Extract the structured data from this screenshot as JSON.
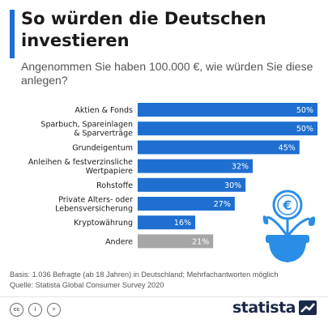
{
  "header": {
    "title": "So würden die Deutschen investieren",
    "subtitle": "Angenommen Sie haben 100.000 €, wie würden Sie diese anlegen?"
  },
  "chart_data": {
    "type": "bar",
    "orientation": "horizontal",
    "categories": [
      [
        "Aktien & Fonds"
      ],
      [
        "Sparbuch, Spareinlagen",
        "& Sparverträge"
      ],
      [
        "Grundeigentum"
      ],
      [
        "Anleihen & festverzinsliche",
        "Wertpapiere"
      ],
      [
        "Rohstoffe"
      ],
      [
        "Private Alters- oder",
        "Lebensversicherung"
      ],
      [
        "Kryptowährung"
      ],
      [
        "Andere"
      ]
    ],
    "values": [
      50,
      50,
      45,
      32,
      30,
      27,
      16,
      21
    ],
    "value_labels": [
      "50%",
      "50%",
      "45%",
      "32%",
      "30%",
      "27%",
      "16%",
      "21%"
    ],
    "xlim": [
      0,
      50
    ],
    "grid": false,
    "colors": {
      "bar": "#1f6fd1",
      "bar_other": "#a6a6a6",
      "accent": "#1f6fd1"
    }
  },
  "illustration": {
    "icon": "money-plant-euro-coin-icon",
    "coin_symbol": "€"
  },
  "footer": {
    "source_line1": "Basis: 1.036 Befragte (ab 18 Jahren) in Deutschland; Mehrfachantworten möglich",
    "source_line2": "Quelle: Statista Global Consumer Survey 2020",
    "license_icons": [
      "cc-icon",
      "attribution-icon",
      "no-derivatives-icon"
    ],
    "license_labels": [
      "cc",
      "i",
      "="
    ],
    "brand": "statista"
  }
}
